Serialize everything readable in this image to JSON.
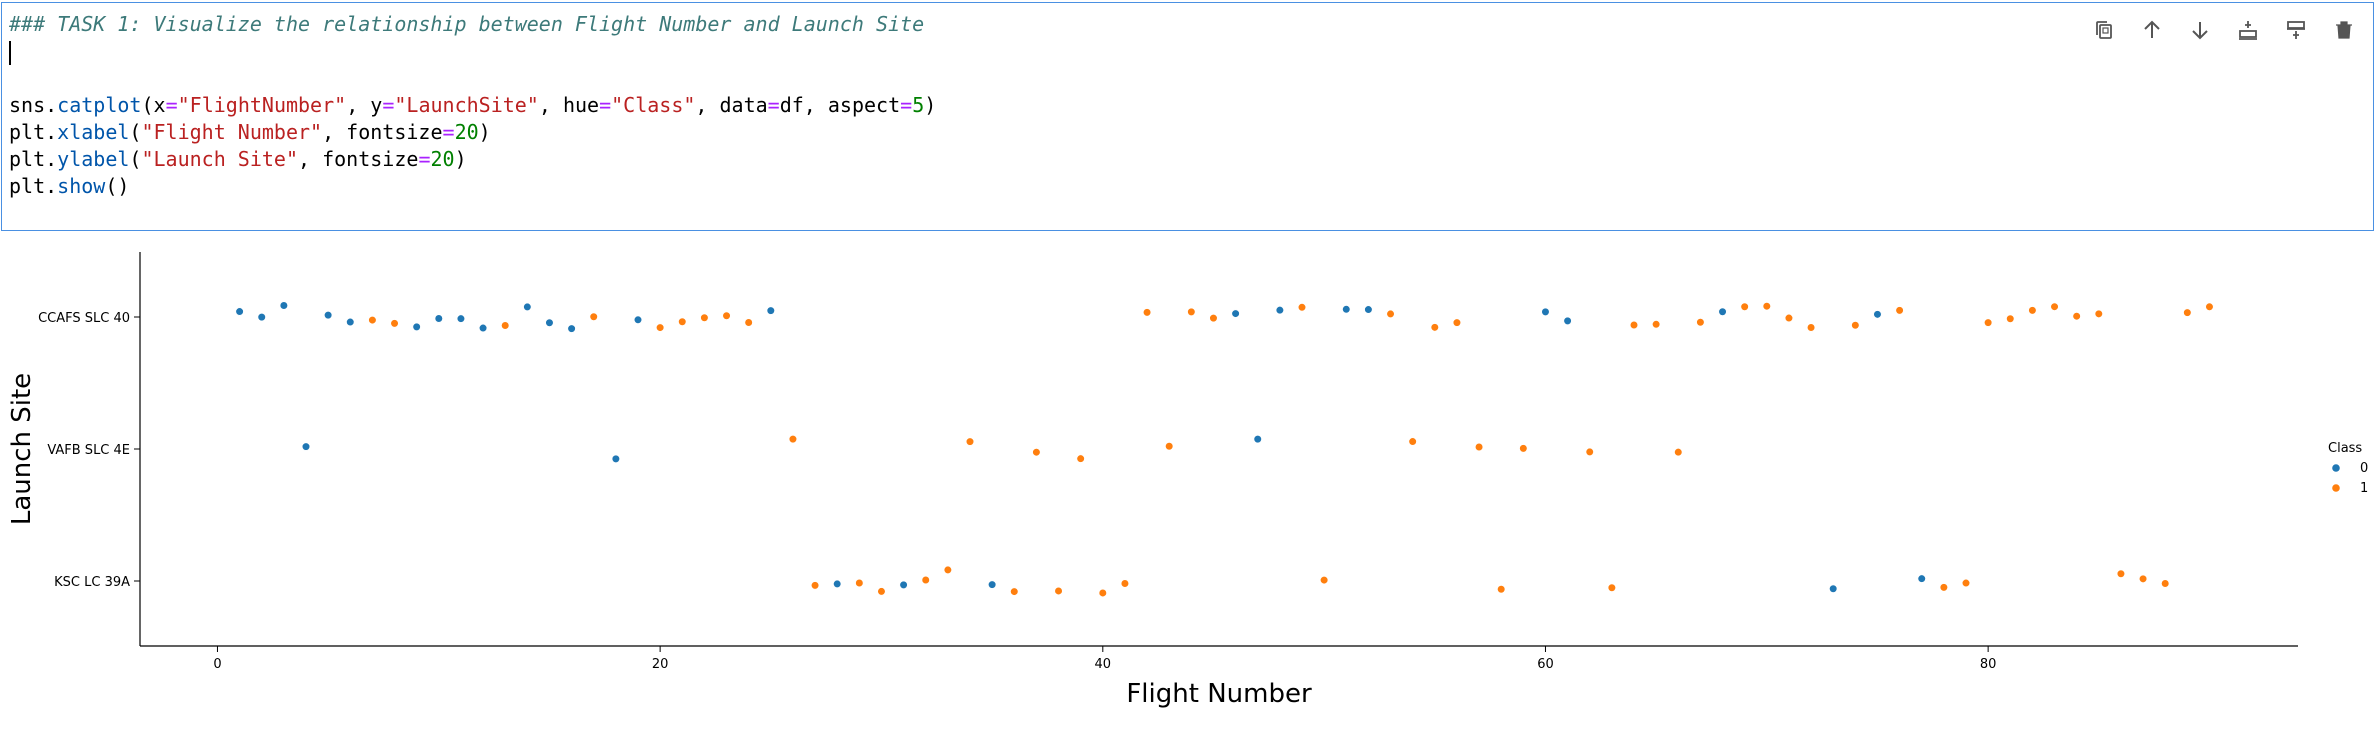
{
  "cell": {
    "code_lines": [
      [
        {
          "t": "### TASK 1: Visualize the relationship between Flight Number and Launch Site",
          "c": "comment"
        }
      ],
      [
        {
          "t": "",
          "c": "caret"
        }
      ],
      [
        {
          "t": "",
          "c": ""
        }
      ],
      [
        {
          "t": "sns",
          "c": ""
        },
        {
          "t": ".",
          "c": ""
        },
        {
          "t": "catplot",
          "c": "kw"
        },
        {
          "t": "(x",
          "c": ""
        },
        {
          "t": "=",
          "c": "op"
        },
        {
          "t": "\"FlightNumber\"",
          "c": "str"
        },
        {
          "t": ", y",
          "c": ""
        },
        {
          "t": "=",
          "c": "op"
        },
        {
          "t": "\"LaunchSite\"",
          "c": "str"
        },
        {
          "t": ", hue",
          "c": ""
        },
        {
          "t": "=",
          "c": "op"
        },
        {
          "t": "\"Class\"",
          "c": "str"
        },
        {
          "t": ", data",
          "c": ""
        },
        {
          "t": "=",
          "c": "op"
        },
        {
          "t": "df, aspect",
          "c": ""
        },
        {
          "t": "=",
          "c": "op"
        },
        {
          "t": "5",
          "c": "num"
        },
        {
          "t": ")",
          "c": ""
        }
      ],
      [
        {
          "t": "plt",
          "c": ""
        },
        {
          "t": ".",
          "c": ""
        },
        {
          "t": "xlabel",
          "c": "kw"
        },
        {
          "t": "(",
          "c": ""
        },
        {
          "t": "\"Flight Number\"",
          "c": "str"
        },
        {
          "t": ", fontsize",
          "c": ""
        },
        {
          "t": "=",
          "c": "op"
        },
        {
          "t": "20",
          "c": "num"
        },
        {
          "t": ")",
          "c": ""
        }
      ],
      [
        {
          "t": "plt",
          "c": ""
        },
        {
          "t": ".",
          "c": ""
        },
        {
          "t": "ylabel",
          "c": "kw"
        },
        {
          "t": "(",
          "c": ""
        },
        {
          "t": "\"Launch Site\"",
          "c": "str"
        },
        {
          "t": ", fontsize",
          "c": ""
        },
        {
          "t": "=",
          "c": "op"
        },
        {
          "t": "20",
          "c": "num"
        },
        {
          "t": ")",
          "c": ""
        }
      ],
      [
        {
          "t": "plt",
          "c": ""
        },
        {
          "t": ".",
          "c": ""
        },
        {
          "t": "show",
          "c": "kw"
        },
        {
          "t": "()",
          "c": ""
        }
      ]
    ],
    "toolbar": [
      {
        "name": "duplicate-cell-button",
        "icon": "copy-icon"
      },
      {
        "name": "move-up-button",
        "icon": "arrow-up-icon"
      },
      {
        "name": "move-down-button",
        "icon": "arrow-down-icon"
      },
      {
        "name": "insert-above-button",
        "icon": "insert-above-icon"
      },
      {
        "name": "insert-below-button",
        "icon": "insert-below-icon"
      },
      {
        "name": "delete-cell-button",
        "icon": "trash-icon"
      }
    ]
  },
  "chart_data": {
    "type": "scatter",
    "title": "",
    "xlabel": "Flight Number",
    "ylabel": "Launch Site",
    "categories": [
      "CCAFS SLC 40",
      "VAFB SLC 4E",
      "KSC LC 39A"
    ],
    "xlim": [
      -3.5,
      94
    ],
    "xticks": [
      0,
      20,
      40,
      60,
      80
    ],
    "grid": false,
    "legend": {
      "title": "Class",
      "entries": [
        "0",
        "1"
      ],
      "placement": "right"
    },
    "colors": {
      "0": "#1f77b4",
      "1": "#ff7f0e"
    },
    "series": [
      {
        "name": "0",
        "points": [
          [
            1,
            "CCAFS SLC 40"
          ],
          [
            2,
            "CCAFS SLC 40"
          ],
          [
            3,
            "CCAFS SLC 40"
          ],
          [
            4,
            "VAFB SLC 4E"
          ],
          [
            5,
            "CCAFS SLC 40"
          ],
          [
            6,
            "CCAFS SLC 40"
          ],
          [
            9,
            "CCAFS SLC 40"
          ],
          [
            10,
            "CCAFS SLC 40"
          ],
          [
            11,
            "CCAFS SLC 40"
          ],
          [
            12,
            "CCAFS SLC 40"
          ],
          [
            14,
            "CCAFS SLC 40"
          ],
          [
            15,
            "CCAFS SLC 40"
          ],
          [
            16,
            "CCAFS SLC 40"
          ],
          [
            18,
            "VAFB SLC 4E"
          ],
          [
            19,
            "CCAFS SLC 40"
          ],
          [
            25,
            "CCAFS SLC 40"
          ],
          [
            28,
            "KSC LC 39A"
          ],
          [
            31,
            "KSC LC 39A"
          ],
          [
            35,
            "KSC LC 39A"
          ],
          [
            46,
            "CCAFS SLC 40"
          ],
          [
            47,
            "VAFB SLC 4E"
          ],
          [
            48,
            "CCAFS SLC 40"
          ],
          [
            51,
            "CCAFS SLC 40"
          ],
          [
            52,
            "CCAFS SLC 40"
          ],
          [
            60,
            "CCAFS SLC 40"
          ],
          [
            61,
            "CCAFS SLC 40"
          ],
          [
            68,
            "CCAFS SLC 40"
          ],
          [
            73,
            "KSC LC 39A"
          ],
          [
            75,
            "CCAFS SLC 40"
          ],
          [
            77,
            "KSC LC 39A"
          ]
        ]
      },
      {
        "name": "1",
        "points": [
          [
            7,
            "CCAFS SLC 40"
          ],
          [
            8,
            "CCAFS SLC 40"
          ],
          [
            13,
            "CCAFS SLC 40"
          ],
          [
            17,
            "CCAFS SLC 40"
          ],
          [
            20,
            "CCAFS SLC 40"
          ],
          [
            21,
            "CCAFS SLC 40"
          ],
          [
            22,
            "CCAFS SLC 40"
          ],
          [
            23,
            "CCAFS SLC 40"
          ],
          [
            24,
            "CCAFS SLC 40"
          ],
          [
            26,
            "VAFB SLC 4E"
          ],
          [
            27,
            "KSC LC 39A"
          ],
          [
            29,
            "KSC LC 39A"
          ],
          [
            30,
            "KSC LC 39A"
          ],
          [
            32,
            "KSC LC 39A"
          ],
          [
            33,
            "KSC LC 39A"
          ],
          [
            34,
            "VAFB SLC 4E"
          ],
          [
            36,
            "KSC LC 39A"
          ],
          [
            37,
            "VAFB SLC 4E"
          ],
          [
            38,
            "KSC LC 39A"
          ],
          [
            39,
            "VAFB SLC 4E"
          ],
          [
            40,
            "KSC LC 39A"
          ],
          [
            41,
            "KSC LC 39A"
          ],
          [
            42,
            "CCAFS SLC 40"
          ],
          [
            43,
            "VAFB SLC 4E"
          ],
          [
            44,
            "CCAFS SLC 40"
          ],
          [
            45,
            "CCAFS SLC 40"
          ],
          [
            49,
            "CCAFS SLC 40"
          ],
          [
            50,
            "KSC LC 39A"
          ],
          [
            53,
            "CCAFS SLC 40"
          ],
          [
            54,
            "VAFB SLC 4E"
          ],
          [
            55,
            "CCAFS SLC 40"
          ],
          [
            56,
            "CCAFS SLC 40"
          ],
          [
            57,
            "VAFB SLC 4E"
          ],
          [
            58,
            "KSC LC 39A"
          ],
          [
            59,
            "VAFB SLC 4E"
          ],
          [
            62,
            "VAFB SLC 4E"
          ],
          [
            63,
            "KSC LC 39A"
          ],
          [
            64,
            "CCAFS SLC 40"
          ],
          [
            65,
            "CCAFS SLC 40"
          ],
          [
            66,
            "VAFB SLC 4E"
          ],
          [
            67,
            "CCAFS SLC 40"
          ],
          [
            69,
            "CCAFS SLC 40"
          ],
          [
            70,
            "CCAFS SLC 40"
          ],
          [
            71,
            "CCAFS SLC 40"
          ],
          [
            72,
            "CCAFS SLC 40"
          ],
          [
            74,
            "CCAFS SLC 40"
          ],
          [
            76,
            "CCAFS SLC 40"
          ],
          [
            78,
            "KSC LC 39A"
          ],
          [
            79,
            "KSC LC 39A"
          ],
          [
            80,
            "CCAFS SLC 40"
          ],
          [
            81,
            "CCAFS SLC 40"
          ],
          [
            82,
            "CCAFS SLC 40"
          ],
          [
            83,
            "CCAFS SLC 40"
          ],
          [
            84,
            "CCAFS SLC 40"
          ],
          [
            85,
            "CCAFS SLC 40"
          ],
          [
            86,
            "KSC LC 39A"
          ],
          [
            87,
            "KSC LC 39A"
          ],
          [
            88,
            "KSC LC 39A"
          ],
          [
            89,
            "CCAFS SLC 40"
          ],
          [
            90,
            "CCAFS SLC 40"
          ]
        ]
      }
    ]
  }
}
